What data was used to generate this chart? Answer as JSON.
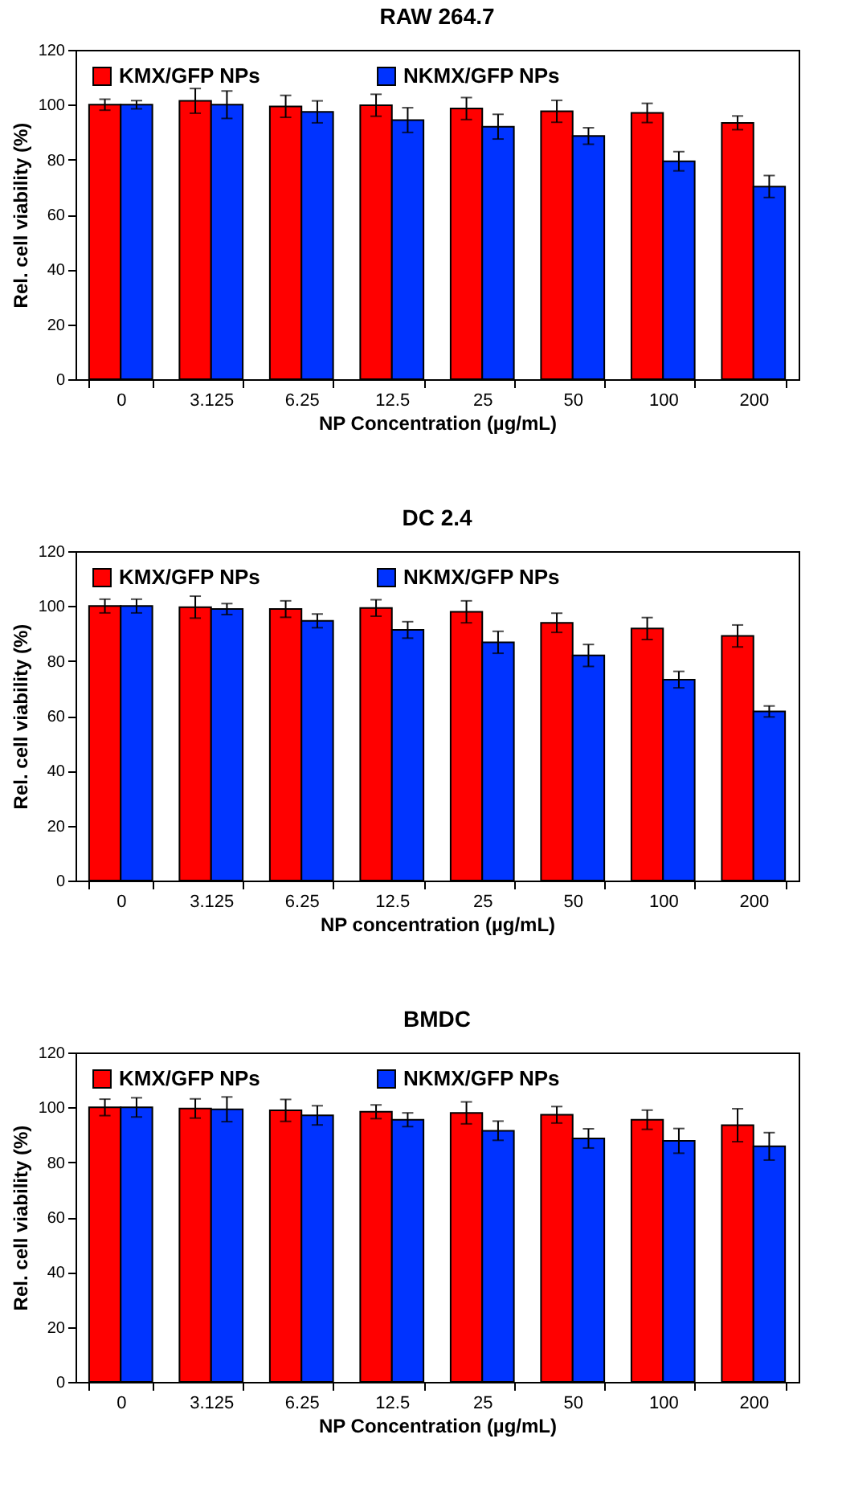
{
  "chart_data": [
    {
      "type": "bar",
      "title": "RAW 264.7",
      "xlabel": "NP Concentration (µg/mL)",
      "ylabel": "Rel. cell viability (%)",
      "categories": [
        "0",
        "3.125",
        "6.25",
        "12.5",
        "25",
        "50",
        "100",
        "200"
      ],
      "ylim": [
        0,
        120
      ],
      "yticks": [
        0,
        20,
        40,
        60,
        80,
        100,
        120
      ],
      "legend": "top",
      "series": [
        {
          "name": "KMX/GFP NPs",
          "color": "#ff0000",
          "values": [
            100,
            101.4,
            99.4,
            99.8,
            98.6,
            97.6,
            97,
            93.4
          ],
          "errors": [
            2,
            4.5,
            4,
            4,
            4,
            4,
            3.5,
            2.5
          ]
        },
        {
          "name": "NKMX/GFP NPs",
          "color": "#0033ff",
          "values": [
            100,
            100,
            97.4,
            94.4,
            92,
            88.6,
            79.4,
            70.2
          ],
          "errors": [
            1.5,
            5,
            4,
            4.5,
            4.5,
            3,
            3.5,
            4
          ]
        }
      ]
    },
    {
      "type": "bar",
      "title": "DC 2.4",
      "xlabel": "NP concentration (µg/mL)",
      "ylabel": "Rel. cell viability (%)",
      "categories": [
        "0",
        "3.125",
        "6.25",
        "12.5",
        "25",
        "50",
        "100",
        "200"
      ],
      "ylim": [
        0,
        120
      ],
      "yticks": [
        0,
        20,
        40,
        60,
        80,
        100,
        120
      ],
      "legend": "top",
      "series": [
        {
          "name": "KMX/GFP NPs",
          "color": "#ff0000",
          "values": [
            100,
            99.6,
            98.9,
            99.3,
            97.9,
            93.9,
            91.8,
            89.1
          ],
          "errors": [
            2.5,
            4,
            3,
            3,
            4,
            3.5,
            4,
            4
          ]
        },
        {
          "name": "NKMX/GFP NPs",
          "color": "#0033ff",
          "values": [
            100,
            98.9,
            94.6,
            91.3,
            86.8,
            82,
            73.2,
            61.6
          ],
          "errors": [
            2.5,
            2,
            2.5,
            3,
            4,
            4,
            3,
            2
          ]
        }
      ]
    },
    {
      "type": "bar",
      "title": "BMDC",
      "xlabel": "NP Concentration (µg/mL)",
      "ylabel": "Rel. cell viability (%)",
      "categories": [
        "0",
        "3.125",
        "6.25",
        "12.5",
        "25",
        "50",
        "100",
        "200"
      ],
      "ylim": [
        0,
        120
      ],
      "yticks": [
        0,
        20,
        40,
        60,
        80,
        100,
        120
      ],
      "legend": "top",
      "series": [
        {
          "name": "KMX/GFP NPs",
          "color": "#ff0000",
          "values": [
            100,
            99.6,
            98.9,
            98.4,
            98,
            97.3,
            95.5,
            93.5
          ],
          "errors": [
            3,
            3.5,
            4,
            2.5,
            4,
            3,
            3.5,
            6
          ]
        },
        {
          "name": "NKMX/GFP NPs",
          "color": "#0033ff",
          "values": [
            100,
            99.3,
            97.1,
            95.5,
            91.5,
            88.7,
            87.8,
            85.8
          ],
          "errors": [
            3.5,
            4.5,
            3.5,
            2.5,
            3.5,
            3.5,
            4.5,
            5
          ]
        }
      ]
    }
  ]
}
